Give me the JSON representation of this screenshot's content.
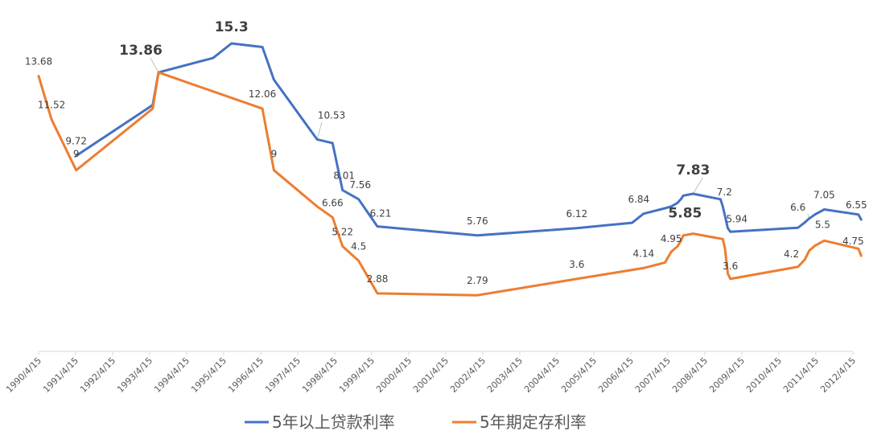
{
  "colors": {
    "loan": "#4472C4",
    "deposit": "#ED7D31",
    "axis": "#D9D9D9",
    "text": "#595959",
    "leader": "#BFBFBF"
  },
  "chart_data": {
    "type": "line",
    "title": "",
    "xlabel": "",
    "ylabel": "",
    "ylim": [
      0,
      16.5
    ],
    "grid": false,
    "legend_position": "bottom",
    "x_ticks": [
      "1990/4/15",
      "1991/4/15",
      "1992/4/15",
      "1993/4/15",
      "1994/4/15",
      "1995/4/15",
      "1996/4/15",
      "1997/4/15",
      "1998/4/15",
      "1999/4/15",
      "2000/4/15",
      "2001/4/15",
      "2002/4/15",
      "2003/4/15",
      "2004/4/15",
      "2005/4/15",
      "2006/4/15",
      "2007/4/15",
      "2008/4/15",
      "2009/4/15",
      "2010/4/15",
      "2011/4/15",
      "2012/4/15"
    ],
    "series": [
      {
        "name": "5年以上贷款利率",
        "color": "#4472C4",
        "points": [
          {
            "date": "1991/4/21",
            "value": 9.72,
            "label": "9.72"
          },
          {
            "date": "1993/5/15",
            "value": 12.24,
            "label": ""
          },
          {
            "date": "1993/7/11",
            "value": 13.86,
            "label": "13.86",
            "emph": true
          },
          {
            "date": "1995/1/1",
            "value": 14.58,
            "label": ""
          },
          {
            "date": "1995/7/1",
            "value": 15.3,
            "label": "15.3",
            "emph": true
          },
          {
            "date": "1996/5/1",
            "value": 15.12,
            "label": ""
          },
          {
            "date": "1996/8/23",
            "value": 13.5,
            "label": ""
          },
          {
            "date": "1997/10/23",
            "value": 10.53,
            "label": "10.53"
          },
          {
            "date": "1998/3/25",
            "value": 10.35,
            "label": ""
          },
          {
            "date": "1998/7/1",
            "value": 8.01,
            "label": "8.01"
          },
          {
            "date": "1998/12/7",
            "value": 7.56,
            "label": "7.56"
          },
          {
            "date": "1999/6/10",
            "value": 6.21,
            "label": "6.21"
          },
          {
            "date": "2002/2/21",
            "value": 5.76,
            "label": "5.76"
          },
          {
            "date": "2004/10/29",
            "value": 6.12,
            "label": "6.12"
          },
          {
            "date": "2006/4/28",
            "value": 6.39,
            "label": ""
          },
          {
            "date": "2006/8/19",
            "value": 6.84,
            "label": "6.84"
          },
          {
            "date": "2007/3/18",
            "value": 7.11,
            "label": ""
          },
          {
            "date": "2007/5/19",
            "value": 7.2,
            "label": ""
          },
          {
            "date": "2007/7/21",
            "value": 7.38,
            "label": ""
          },
          {
            "date": "2007/8/22",
            "value": 7.56,
            "label": ""
          },
          {
            "date": "2007/9/15",
            "value": 7.74,
            "label": ""
          },
          {
            "date": "2007/12/21",
            "value": 7.83,
            "label": "7.83",
            "emph": true
          },
          {
            "date": "2008/9/16",
            "value": 7.56,
            "label": ""
          },
          {
            "date": "2008/10/9",
            "value": 7.2,
            "label": "7.2"
          },
          {
            "date": "2008/10/30",
            "value": 6.75,
            "label": ""
          },
          {
            "date": "2008/11/27",
            "value": 6.12,
            "label": ""
          },
          {
            "date": "2008/12/23",
            "value": 5.94,
            "label": "5.94"
          },
          {
            "date": "2010/10/20",
            "value": 6.14,
            "label": ""
          },
          {
            "date": "2010/12/26",
            "value": 6.4,
            "label": ""
          },
          {
            "date": "2011/2/9",
            "value": 6.6,
            "label": "6.6"
          },
          {
            "date": "2011/4/6",
            "value": 6.8,
            "label": ""
          },
          {
            "date": "2011/7/7",
            "value": 7.05,
            "label": "7.05"
          },
          {
            "date": "2012/6/8",
            "value": 6.8,
            "label": ""
          },
          {
            "date": "2012/7/6",
            "value": 6.55,
            "label": "6.55"
          }
        ]
      },
      {
        "name": "5年期定存利率",
        "color": "#ED7D31",
        "points": [
          {
            "date": "1990/4/15",
            "value": 13.68,
            "label": "13.68"
          },
          {
            "date": "1990/8/21",
            "value": 11.52,
            "label": "11.52"
          },
          {
            "date": "1991/4/21",
            "value": 9,
            "label": "9"
          },
          {
            "date": "1993/5/15",
            "value": 12.06,
            "label": ""
          },
          {
            "date": "1993/7/11",
            "value": 13.86,
            "label": ""
          },
          {
            "date": "1996/5/1",
            "value": 12.06,
            "label": "12.06"
          },
          {
            "date": "1996/8/23",
            "value": 9,
            "label": "9"
          },
          {
            "date": "1997/10/23",
            "value": 7.2,
            "label": ""
          },
          {
            "date": "1998/3/25",
            "value": 6.66,
            "label": "6.66"
          },
          {
            "date": "1998/7/1",
            "value": 5.22,
            "label": "5.22"
          },
          {
            "date": "1998/12/7",
            "value": 4.5,
            "label": "4.5"
          },
          {
            "date": "1999/6/10",
            "value": 2.88,
            "label": "2.88"
          },
          {
            "date": "2002/2/21",
            "value": 2.79,
            "label": "2.79"
          },
          {
            "date": "2004/10/29",
            "value": 3.6,
            "label": "3.6"
          },
          {
            "date": "2006/8/19",
            "value": 4.14,
            "label": "4.14"
          },
          {
            "date": "2007/3/18",
            "value": 4.41,
            "label": ""
          },
          {
            "date": "2007/5/19",
            "value": 4.95,
            "label": "4.95"
          },
          {
            "date": "2007/7/21",
            "value": 5.22,
            "label": ""
          },
          {
            "date": "2007/8/22",
            "value": 5.49,
            "label": ""
          },
          {
            "date": "2007/9/15",
            "value": 5.76,
            "label": ""
          },
          {
            "date": "2007/12/21",
            "value": 5.85,
            "label": "5.85",
            "emph": true
          },
          {
            "date": "2008/10/9",
            "value": 5.58,
            "label": ""
          },
          {
            "date": "2008/10/30",
            "value": 5.13,
            "label": ""
          },
          {
            "date": "2008/11/27",
            "value": 3.87,
            "label": ""
          },
          {
            "date": "2008/12/23",
            "value": 3.6,
            "label": "3.6"
          },
          {
            "date": "2010/10/20",
            "value": 4.2,
            "label": "4.2"
          },
          {
            "date": "2010/12/26",
            "value": 4.55,
            "label": ""
          },
          {
            "date": "2011/2/9",
            "value": 5,
            "label": ""
          },
          {
            "date": "2011/4/6",
            "value": 5.25,
            "label": ""
          },
          {
            "date": "2011/7/7",
            "value": 5.5,
            "label": "5.5"
          },
          {
            "date": "2012/6/8",
            "value": 5.1,
            "label": ""
          },
          {
            "date": "2012/7/6",
            "value": 4.75,
            "label": "4.75"
          }
        ]
      }
    ]
  }
}
